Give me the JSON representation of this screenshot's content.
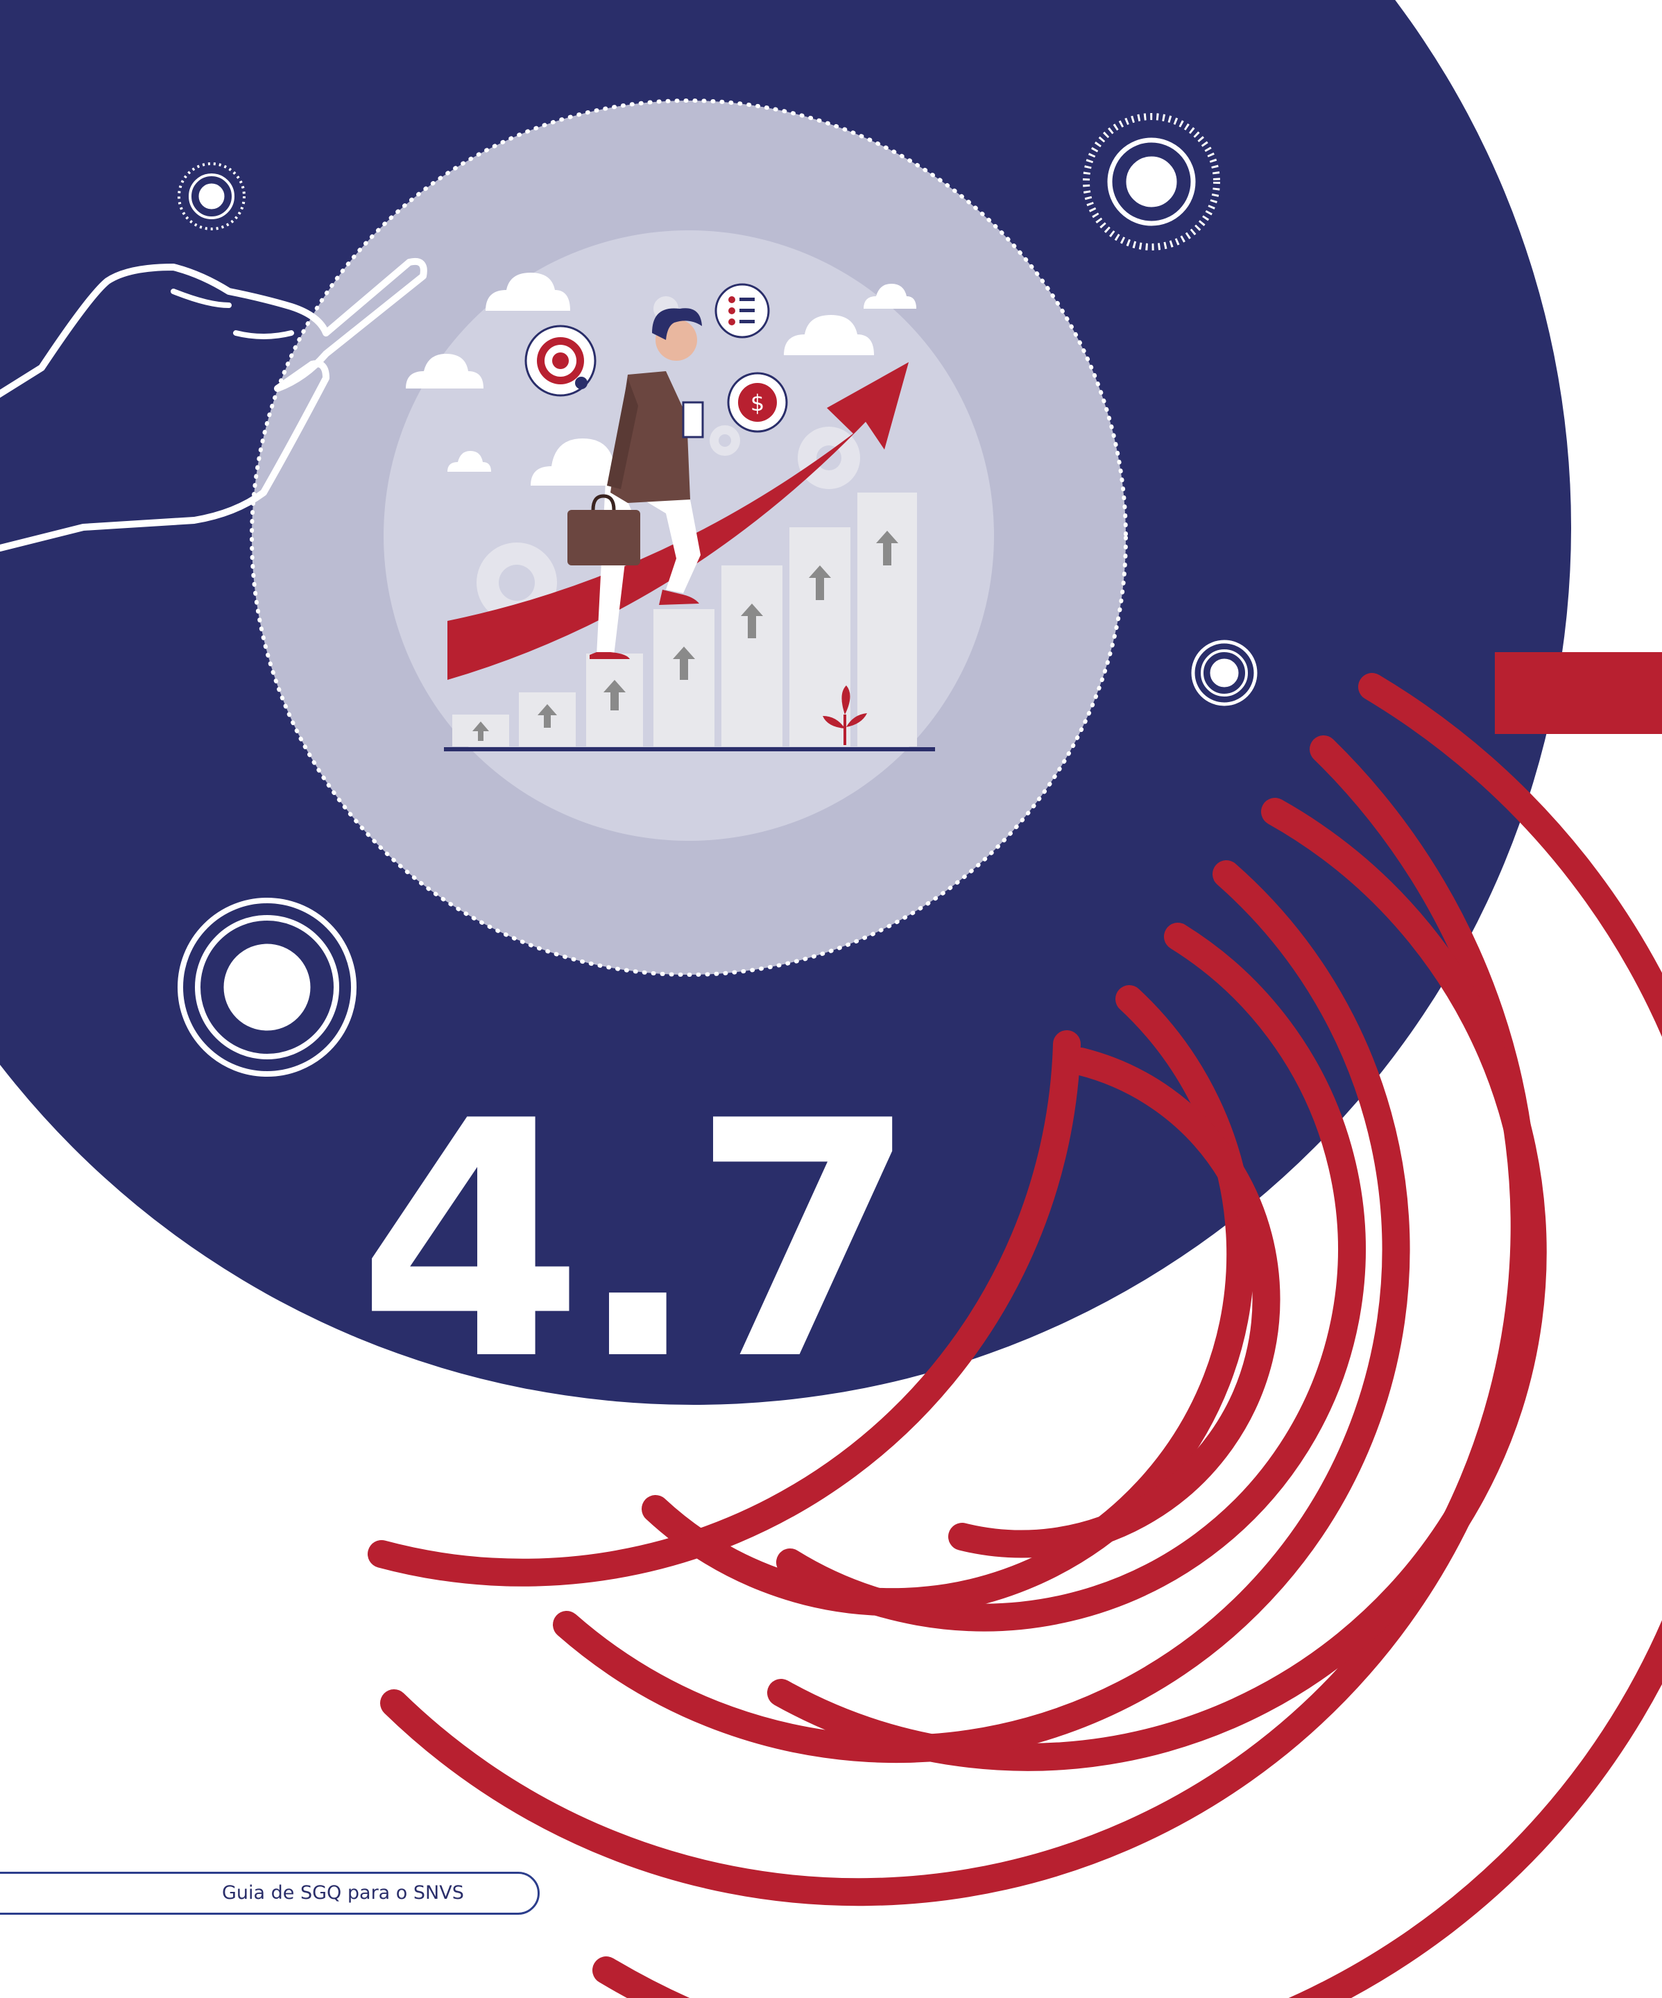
{
  "section": {
    "number": "4.7"
  },
  "footer": {
    "text": "Guia de SGQ para o SNVS"
  },
  "colors": {
    "navy": "#2a2e6a",
    "red": "#b82030",
    "lavender_outer": "#bbbcd2",
    "lavender_inner": "#d0d1e1",
    "white": "#ffffff"
  },
  "icons": [
    "pointing-hand-icon",
    "target-circle-icon",
    "businesswoman-icon",
    "growth-arrow-icon",
    "bar-steps-icon",
    "target-icon",
    "checklist-icon",
    "dollar-coin-icon",
    "gear-icon",
    "cloud-icon",
    "plant-icon",
    "concentric-arcs-decoration"
  ]
}
